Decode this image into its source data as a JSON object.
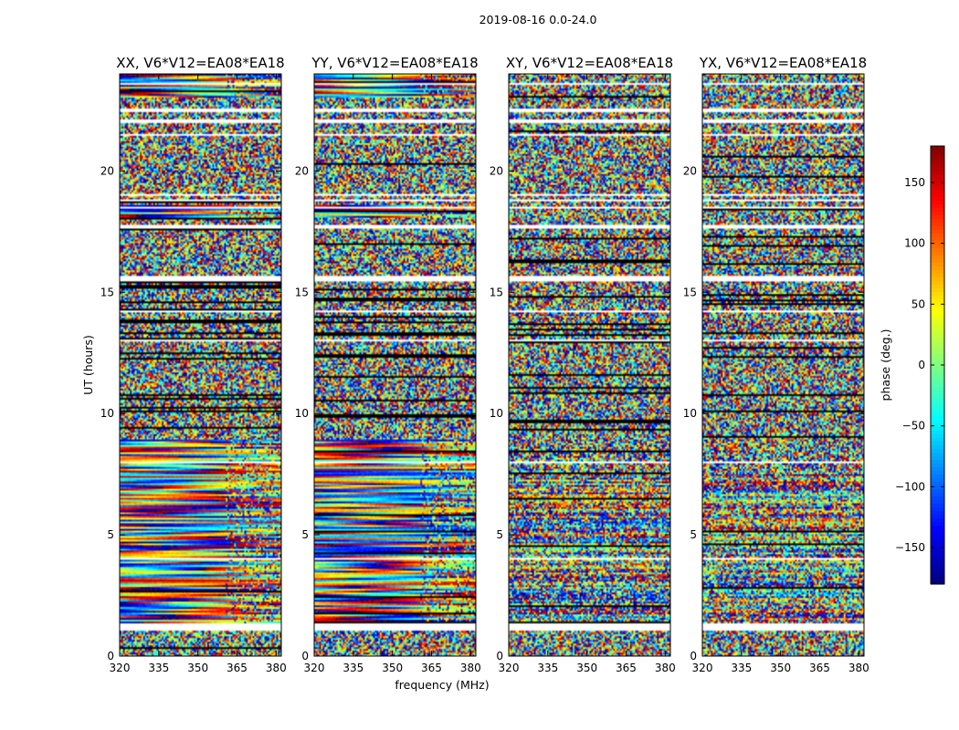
{
  "chart_data": {
    "type": "heatmap",
    "suptitle": "2019-08-16 0.0-24.0",
    "xlabel": "frequency (MHz)",
    "ylabel": "UT (hours)",
    "colorbar_label": "phase (deg.)",
    "colormap": "jet",
    "xlim": [
      320,
      382
    ],
    "ylim": [
      0,
      24
    ],
    "clim": [
      -180,
      180
    ],
    "xticks": [
      320,
      335,
      350,
      365,
      380
    ],
    "yticks": [
      0,
      5,
      10,
      15,
      20
    ],
    "colorbar_ticks": [
      150,
      100,
      50,
      0,
      -50,
      -100,
      -150
    ],
    "colorbar_tick_labels": [
      "150",
      "100",
      "50",
      "0",
      "−50",
      "−100",
      "−150"
    ],
    "panels": [
      {
        "title": "XX, V6*V12=EA08*EA18",
        "pol": "XX",
        "coherent": true
      },
      {
        "title": "YY, V6*V12=EA08*EA18",
        "pol": "YY",
        "coherent": true
      },
      {
        "title": "XY, V6*V12=EA08*EA18",
        "pol": "XY",
        "coherent": false
      },
      {
        "title": "YX, V6*V12=EA08*EA18",
        "pol": "YX",
        "coherent": false
      }
    ],
    "flagged_ut_hours": [
      1.1,
      1.2,
      1.3,
      4.0,
      8.0,
      13.0,
      14.2,
      15.5,
      15.6,
      17.7,
      18.5,
      18.8,
      19.0,
      21.5,
      22.0,
      22.1,
      22.5,
      23.6
    ]
  }
}
